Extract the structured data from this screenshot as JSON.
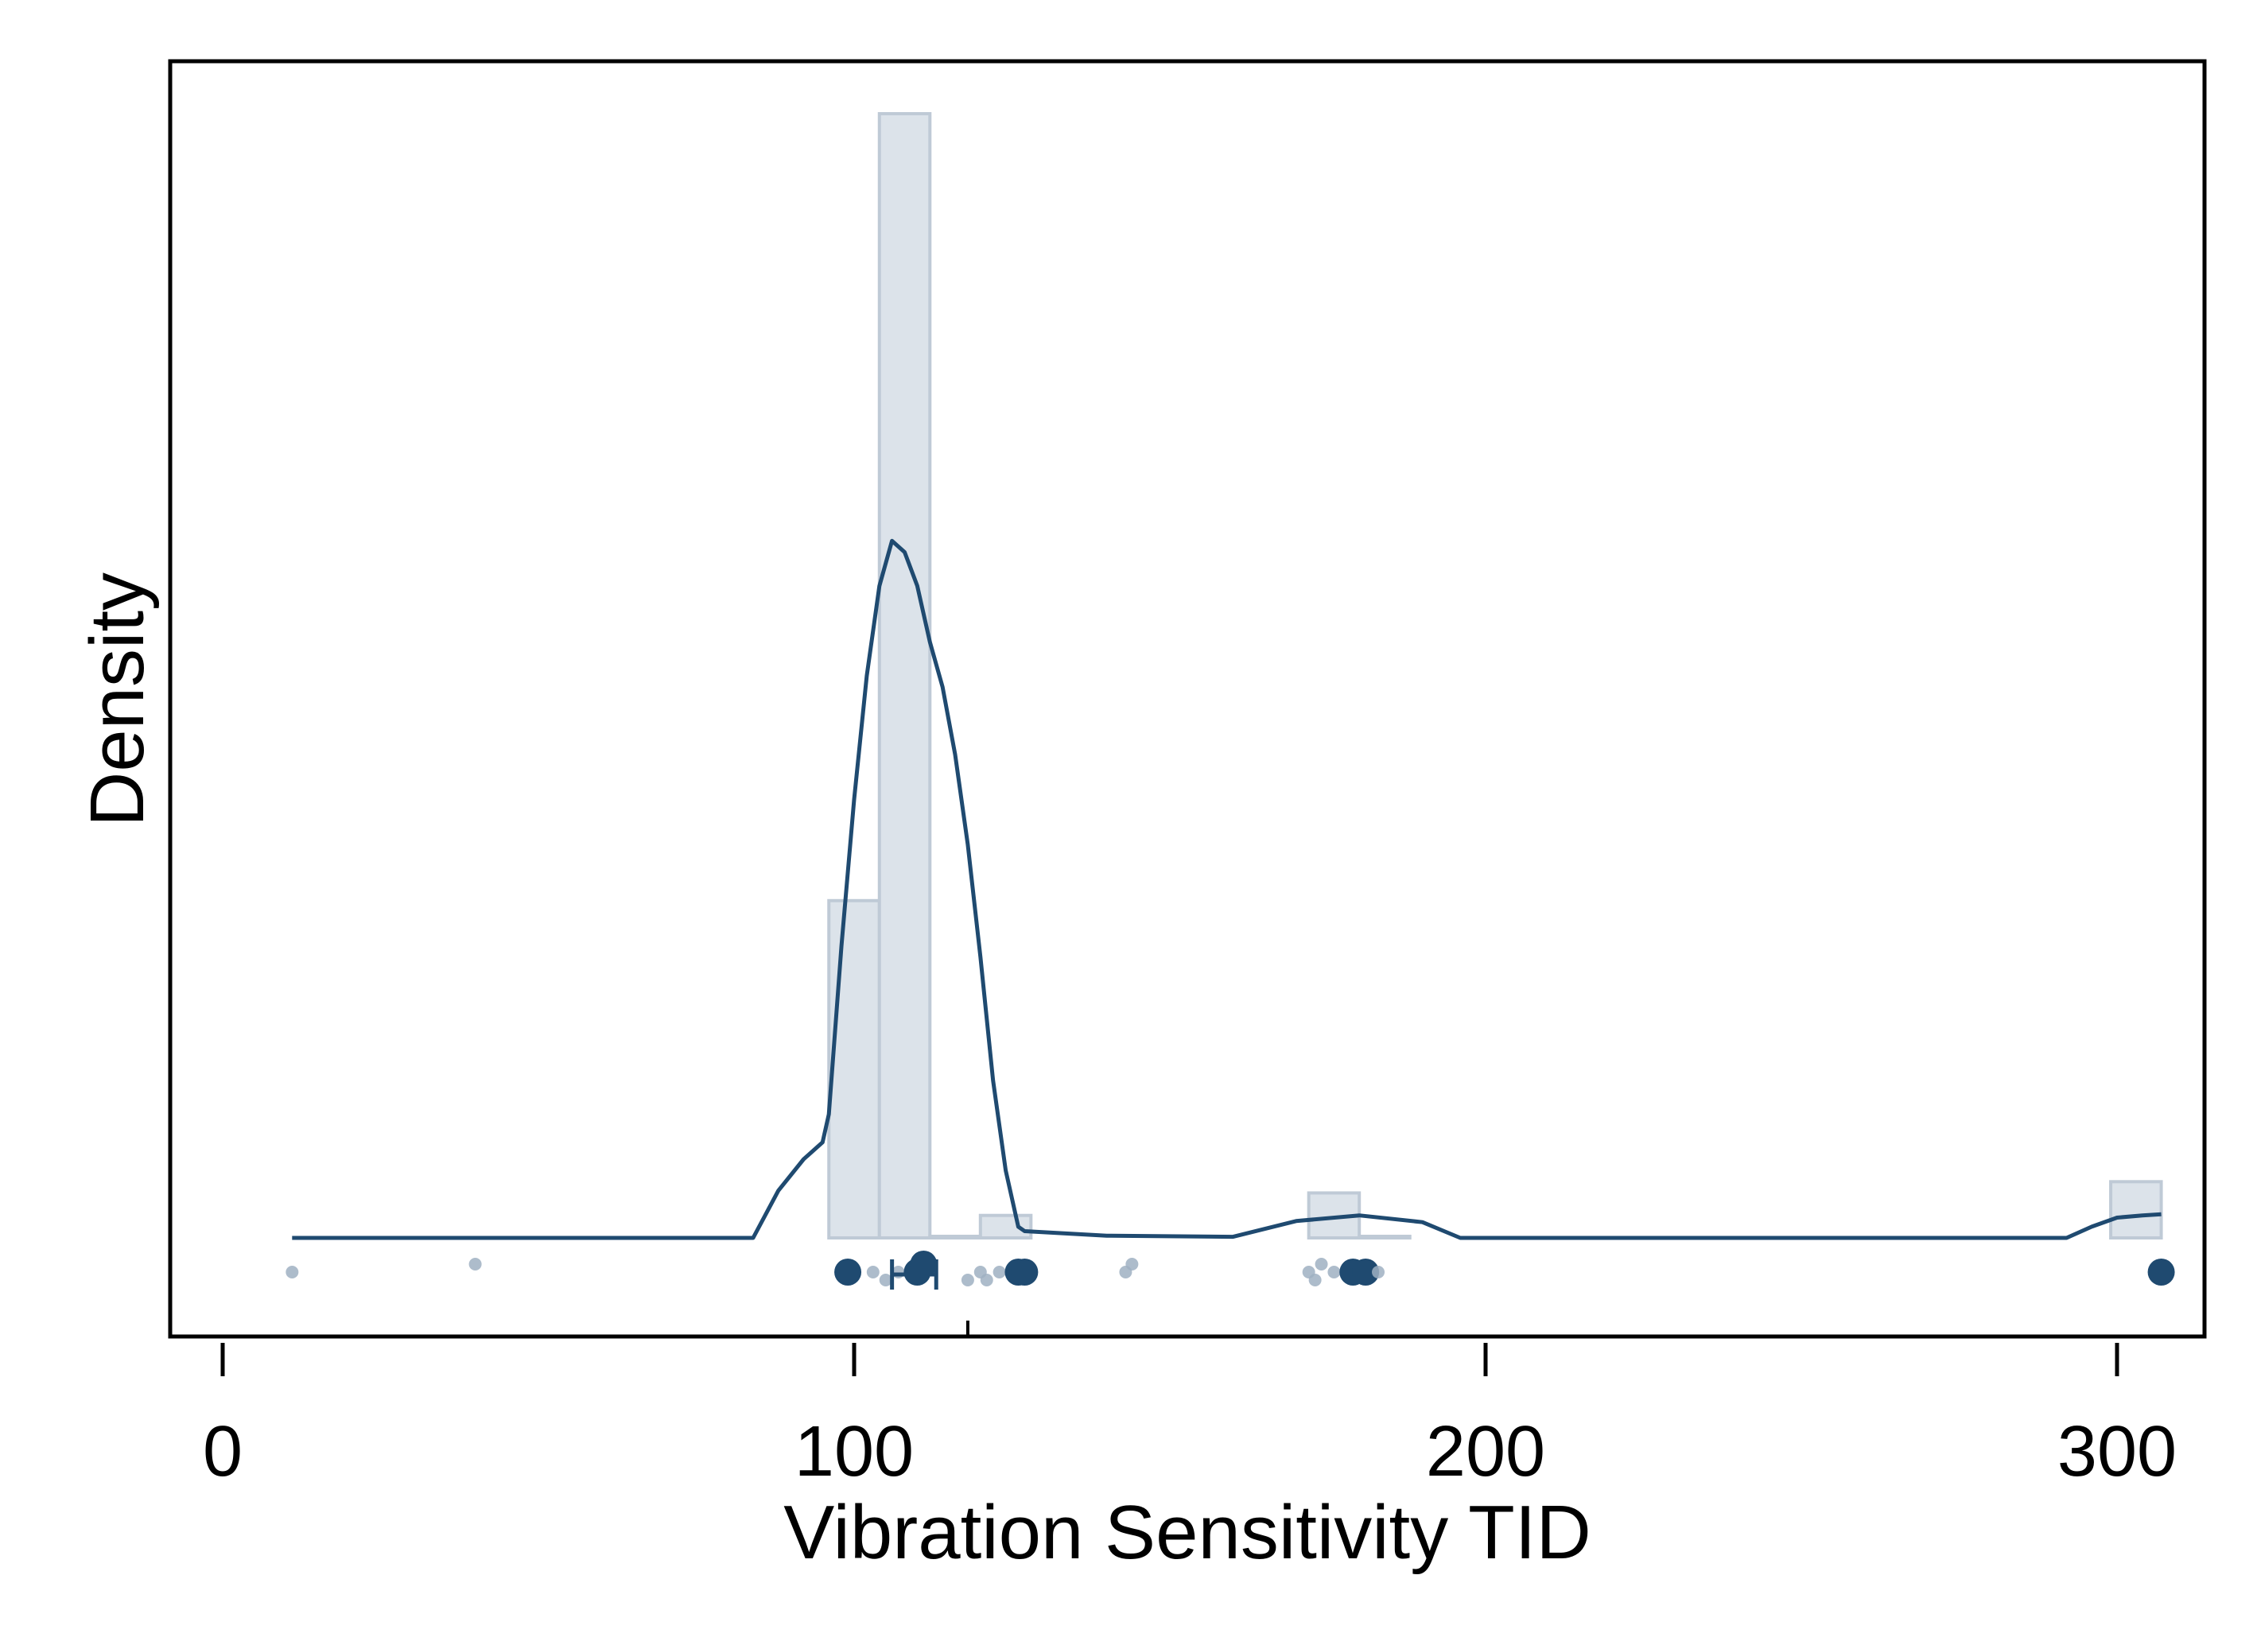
{
  "chart_data": {
    "type": "histogram",
    "title": "",
    "xlabel": "Vibration Sensitivity TID",
    "ylabel": "Density",
    "xlim": [
      -8,
      313
    ],
    "ylim": [
      0,
      1.12
    ],
    "grid": false,
    "x_ticks": [
      {
        "value": 0,
        "label": "0"
      },
      {
        "value": 100,
        "label": "100"
      },
      {
        "value": 200,
        "label": "200"
      },
      {
        "value": 300,
        "label": "300"
      }
    ],
    "histogram": {
      "bin_width": 8,
      "bins": [
        {
          "start": 96,
          "end": 104,
          "density": 0.3
        },
        {
          "start": 104,
          "end": 112,
          "density": 1.0
        },
        {
          "start": 112,
          "end": 120,
          "density": 0.0
        },
        {
          "start": 120,
          "end": 128,
          "density": 0.02
        },
        {
          "start": 172,
          "end": 180,
          "density": 0.04
        },
        {
          "start": 180,
          "end": 188,
          "density": 0.0
        },
        {
          "start": 299,
          "end": 307,
          "density": 0.05
        }
      ]
    },
    "kde": {
      "x": [
        11,
        40,
        80,
        84,
        88,
        92,
        95,
        96,
        98,
        100,
        102,
        104,
        106,
        108,
        110,
        112,
        114,
        116,
        118,
        120,
        122,
        124,
        126,
        127,
        140,
        160,
        170,
        180,
        190,
        196,
        220,
        260,
        292,
        296,
        300,
        304,
        307
      ],
      "y": [
        0.0,
        0.0,
        0.0,
        0.0,
        0.042,
        0.07,
        0.085,
        0.11,
        0.26,
        0.39,
        0.5,
        0.58,
        0.62,
        0.61,
        0.58,
        0.53,
        0.49,
        0.43,
        0.35,
        0.25,
        0.14,
        0.06,
        0.01,
        0.006,
        0.002,
        0.001,
        0.015,
        0.02,
        0.014,
        0.0,
        0.0,
        0.0,
        0.0,
        0.01,
        0.018,
        0.02,
        0.021
      ]
    },
    "points": [
      {
        "x": 11,
        "o": 0,
        "size": "small"
      },
      {
        "x": 40,
        "o": -1,
        "size": "small"
      },
      {
        "x": 99,
        "o": 0,
        "size": "large"
      },
      {
        "x": 103,
        "o": 0,
        "size": "small"
      },
      {
        "x": 105,
        "o": 1,
        "size": "small"
      },
      {
        "x": 107,
        "o": 0,
        "size": "small"
      },
      {
        "x": 110,
        "o": 0,
        "size": "large"
      },
      {
        "x": 111,
        "o": -1,
        "size": "large"
      },
      {
        "x": 118,
        "o": 1,
        "size": "small"
      },
      {
        "x": 120,
        "o": 0,
        "size": "small"
      },
      {
        "x": 121,
        "o": 1,
        "size": "small"
      },
      {
        "x": 123,
        "o": 0,
        "size": "small"
      },
      {
        "x": 126,
        "o": 0,
        "size": "large"
      },
      {
        "x": 127,
        "o": 0,
        "size": "large"
      },
      {
        "x": 143,
        "o": 0,
        "size": "small"
      },
      {
        "x": 144,
        "o": -1,
        "size": "small"
      },
      {
        "x": 172,
        "o": 0,
        "size": "small"
      },
      {
        "x": 173,
        "o": 1,
        "size": "small"
      },
      {
        "x": 174,
        "o": -1,
        "size": "small"
      },
      {
        "x": 176,
        "o": 0,
        "size": "small"
      },
      {
        "x": 179,
        "o": 0,
        "size": "large"
      },
      {
        "x": 181,
        "o": 0,
        "size": "large"
      },
      {
        "x": 183,
        "o": 0,
        "size": "small"
      },
      {
        "x": 307,
        "o": 0,
        "size": "large"
      }
    ],
    "interval": {
      "low": 106,
      "high": 113
    },
    "median_tick": 118,
    "colors": {
      "bar_fill": "#dce3ea",
      "bar_stroke": "#bfcad6",
      "line": "#1f4a70",
      "point": "#1f4a70",
      "point_light": "#9fb0c2",
      "frame": "#000000"
    }
  }
}
